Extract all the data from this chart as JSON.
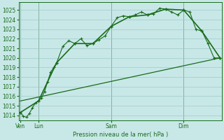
{
  "xlabel": "Pression niveau de la mer( hPa )",
  "bg_color": "#c8e8e8",
  "grid_color": "#a0c8c8",
  "line_color": "#1a6b1a",
  "ylim": [
    1013.5,
    1025.8
  ],
  "yticks": [
    1014,
    1015,
    1016,
    1017,
    1018,
    1019,
    1020,
    1021,
    1022,
    1023,
    1024,
    1025
  ],
  "xlim": [
    -0.5,
    66.5
  ],
  "line1_x": [
    0,
    1,
    2,
    3,
    4,
    5,
    6,
    7,
    8,
    9,
    10,
    11,
    12,
    14,
    16,
    18,
    20,
    22,
    24,
    26,
    28,
    30,
    32,
    34,
    36,
    38,
    40,
    42,
    44,
    46,
    48,
    50,
    52,
    54,
    56,
    58,
    60,
    62,
    64,
    66
  ],
  "line1_y": [
    1014.3,
    1013.9,
    1013.8,
    1014.2,
    1014.8,
    1015.3,
    1015.5,
    1015.8,
    1016.5,
    1017.5,
    1018.5,
    1019.0,
    1019.5,
    1021.2,
    1021.8,
    1021.5,
    1022.0,
    1021.3,
    1021.5,
    1021.9,
    1022.3,
    1023.3,
    1024.2,
    1024.4,
    1024.3,
    1024.5,
    1024.8,
    1024.5,
    1024.6,
    1025.2,
    1025.1,
    1024.8,
    1024.5,
    1025.0,
    1024.8,
    1023.0,
    1022.8,
    1021.5,
    1020.0,
    1020.0
  ],
  "line2_x": [
    0,
    6,
    12,
    18,
    24,
    30,
    36,
    42,
    48,
    54,
    60,
    66
  ],
  "line2_y": [
    1014.3,
    1015.5,
    1019.5,
    1021.5,
    1021.5,
    1023.3,
    1024.3,
    1024.5,
    1025.1,
    1025.0,
    1022.8,
    1020.0
  ],
  "line3_x": [
    0,
    66
  ],
  "line3_y": [
    1015.5,
    1020.0
  ],
  "xtick_positions": [
    0,
    6,
    30,
    54
  ],
  "xtick_labels": [
    "Ven",
    "Lun",
    "Sam",
    "Dim"
  ],
  "vline_positions": [
    0,
    6,
    30,
    54
  ],
  "figsize": [
    3.2,
    2.0
  ],
  "dpi": 100
}
